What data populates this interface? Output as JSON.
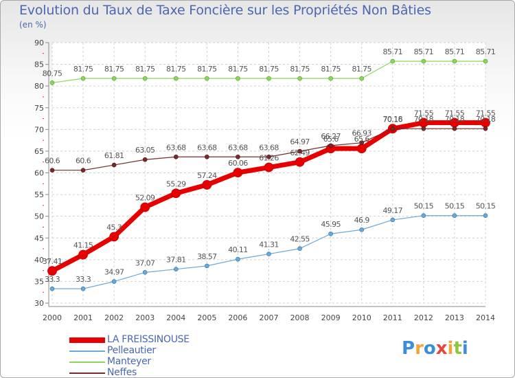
{
  "header": {
    "title": "Evolution du Taux de Taxe Foncière sur les Propriétés Non Bâties",
    "unit": "(en %)"
  },
  "logo": {
    "letters": [
      "P",
      "r",
      "o",
      "x",
      "i",
      "t",
      "i"
    ],
    "colors": [
      "#3a8fd8",
      "#f2a43a",
      "#3a8fd8",
      "#e8463c",
      "#f2a43a",
      "#8cc63f",
      "#3a8fd8"
    ]
  },
  "chart_data": {
    "type": "line",
    "x": [
      2000,
      2001,
      2002,
      2003,
      2004,
      2005,
      2006,
      2007,
      2008,
      2009,
      2010,
      2011,
      2012,
      2013,
      2014
    ],
    "ylim": [
      30,
      90
    ],
    "yticks": [
      30,
      35,
      40,
      45,
      50,
      55,
      60,
      65,
      70,
      75,
      80,
      85,
      90
    ],
    "grid": true,
    "legend_position": "bottom-left",
    "series": [
      {
        "name": "LA FREISSINOUSE",
        "color": "#e80000",
        "values": [
          37.41,
          41.15,
          45.3,
          52.09,
          55.29,
          57.24,
          60.06,
          61.26,
          62.49,
          65.6,
          65.6,
          70.18,
          71.55,
          71.55,
          71.55
        ],
        "labels": [
          "37.41",
          "41.15",
          "45.3",
          "52.09",
          "55.29",
          "57.24",
          "60.06",
          "61.26",
          "62.49",
          "65.6",
          "65.6",
          "70.18",
          "71.55",
          "71.55",
          "71.55"
        ]
      },
      {
        "name": "Pelleautier",
        "color": "#6aa8d8",
        "values": [
          33.3,
          33.3,
          34.97,
          37.07,
          37.81,
          38.57,
          40.11,
          41.31,
          42.55,
          45.95,
          46.9,
          49.17,
          50.15,
          50.15,
          50.15
        ],
        "labels": [
          "33.3",
          "33.3",
          "34.97",
          "37.07",
          "37.81",
          "38.57",
          "40.11",
          "41.31",
          "42.55",
          "45.95",
          "46.9",
          "49.17",
          "50.15",
          "50.15",
          "50.15"
        ]
      },
      {
        "name": "Manteyer",
        "color": "#8cd65a",
        "values": [
          80.75,
          81.75,
          81.75,
          81.75,
          81.75,
          81.75,
          81.75,
          81.75,
          81.75,
          81.75,
          81.75,
          85.71,
          85.71,
          85.71,
          85.71
        ],
        "labels": [
          "80.75",
          "81.75",
          "81.75",
          "81.75",
          "81.75",
          "81.75",
          "81.75",
          "81.75",
          "81.75",
          "81.75",
          "81.75",
          "85.71",
          "85.71",
          "85.71",
          "85.71"
        ]
      },
      {
        "name": "Neffes",
        "color": "#7a2a2a",
        "values": [
          60.6,
          60.6,
          61.81,
          63.05,
          63.68,
          63.68,
          63.68,
          63.68,
          64.97,
          66.27,
          66.93,
          70.16,
          70.18,
          70.18,
          70.18
        ],
        "labels": [
          "60.6",
          "60.6",
          "61.81",
          "63.05",
          "63.68",
          "63.68",
          "63.68",
          "63.68",
          "64.97",
          "66.27",
          "66.93",
          "70.16",
          "70.18",
          "70.18",
          "70.18"
        ]
      }
    ]
  }
}
